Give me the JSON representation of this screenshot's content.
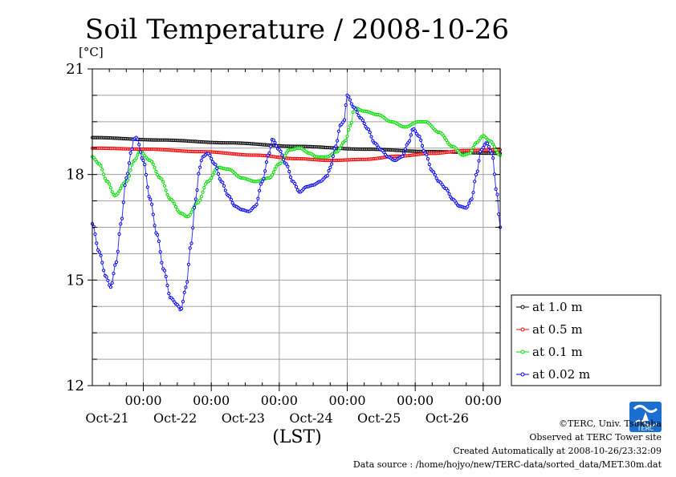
{
  "chart_data": {
    "type": "line",
    "title": "Soil Temperature / 2008-10-26",
    "ylabel": "[°C]",
    "xlabel": "(LST)",
    "ylim": [
      12,
      21
    ],
    "xlim": [
      0,
      6
    ],
    "yticks": [
      {
        "value": 12,
        "label": "12"
      },
      {
        "value": 15,
        "label": "15"
      },
      {
        "value": 18,
        "label": "18"
      },
      {
        "value": 21,
        "label": "21"
      }
    ],
    "ygrid": [
      12,
      15,
      18,
      21
    ],
    "xticks": [
      {
        "pos": 0.75,
        "time": "00:00",
        "date": "Oct-21"
      },
      {
        "pos": 1.75,
        "time": "00:00",
        "date": "Oct-22"
      },
      {
        "pos": 2.75,
        "time": "00:00",
        "date": "Oct-23"
      },
      {
        "pos": 3.75,
        "time": "00:00",
        "date": "Oct-24"
      },
      {
        "pos": 4.75,
        "time": "00:00",
        "date": "Oct-25"
      },
      {
        "pos": 5.75,
        "time": "00:00",
        "date": "Oct-26"
      }
    ],
    "grid": true,
    "legend_position": "right",
    "series": [
      {
        "name": "at 1.0 m",
        "color": "#000000",
        "points": [
          [
            0,
            19.05
          ],
          [
            1,
            18.98
          ],
          [
            2,
            18.9
          ],
          [
            3,
            18.8
          ],
          [
            4,
            18.72
          ],
          [
            5,
            18.65
          ],
          [
            6,
            18.6
          ]
        ]
      },
      {
        "name": "at 0.5 m",
        "color": "#ff0000",
        "points": [
          [
            0,
            18.75
          ],
          [
            0.8,
            18.72
          ],
          [
            1.6,
            18.65
          ],
          [
            2.4,
            18.55
          ],
          [
            3,
            18.45
          ],
          [
            3.5,
            18.4
          ],
          [
            4,
            18.43
          ],
          [
            4.5,
            18.52
          ],
          [
            5,
            18.6
          ],
          [
            5.5,
            18.68
          ],
          [
            6,
            18.7
          ]
        ]
      },
      {
        "name": "at 0.1 m",
        "color": "#00dd00",
        "points": [
          [
            0,
            18.5
          ],
          [
            0.1,
            18.3
          ],
          [
            0.22,
            17.8
          ],
          [
            0.33,
            17.4
          ],
          [
            0.5,
            17.8
          ],
          [
            0.62,
            18.4
          ],
          [
            0.7,
            18.65
          ],
          [
            0.85,
            18.4
          ],
          [
            1,
            17.9
          ],
          [
            1.15,
            17.3
          ],
          [
            1.3,
            16.9
          ],
          [
            1.4,
            16.8
          ],
          [
            1.55,
            17.2
          ],
          [
            1.7,
            17.8
          ],
          [
            1.85,
            18.2
          ],
          [
            2,
            18.15
          ],
          [
            2.2,
            17.9
          ],
          [
            2.4,
            17.8
          ],
          [
            2.6,
            17.9
          ],
          [
            2.75,
            18.3
          ],
          [
            2.9,
            18.7
          ],
          [
            3.05,
            18.75
          ],
          [
            3.2,
            18.6
          ],
          [
            3.3,
            18.5
          ],
          [
            3.45,
            18.5
          ],
          [
            3.6,
            18.65
          ],
          [
            3.72,
            18.95
          ],
          [
            3.8,
            19.4
          ],
          [
            3.85,
            19.9
          ],
          [
            4,
            19.8
          ],
          [
            4.2,
            19.7
          ],
          [
            4.4,
            19.5
          ],
          [
            4.6,
            19.35
          ],
          [
            4.8,
            19.5
          ],
          [
            4.9,
            19.5
          ],
          [
            5.1,
            19.2
          ],
          [
            5.3,
            18.8
          ],
          [
            5.45,
            18.55
          ],
          [
            5.55,
            18.6
          ],
          [
            5.65,
            18.9
          ],
          [
            5.75,
            19.1
          ],
          [
            5.85,
            18.95
          ],
          [
            6,
            18.55
          ]
        ]
      },
      {
        "name": "at 0.02 m",
        "color": "#0000ff",
        "points": [
          [
            0,
            16.6
          ],
          [
            0.1,
            15.8
          ],
          [
            0.2,
            15.1
          ],
          [
            0.27,
            14.8
          ],
          [
            0.35,
            15.5
          ],
          [
            0.42,
            16.6
          ],
          [
            0.5,
            17.9
          ],
          [
            0.58,
            18.7
          ],
          [
            0.6,
            19.0
          ],
          [
            0.65,
            19.05
          ],
          [
            0.75,
            18.4
          ],
          [
            0.85,
            17.3
          ],
          [
            0.95,
            16.3
          ],
          [
            1.05,
            15.3
          ],
          [
            1.15,
            14.5
          ],
          [
            1.25,
            14.3
          ],
          [
            1.3,
            14.15
          ],
          [
            1.38,
            14.8
          ],
          [
            1.45,
            16.0
          ],
          [
            1.52,
            17.3
          ],
          [
            1.58,
            18.2
          ],
          [
            1.62,
            18.5
          ],
          [
            1.7,
            18.6
          ],
          [
            1.8,
            18.3
          ],
          [
            1.9,
            17.8
          ],
          [
            2.0,
            17.4
          ],
          [
            2.1,
            17.1
          ],
          [
            2.2,
            17.0
          ],
          [
            2.3,
            16.95
          ],
          [
            2.4,
            17.1
          ],
          [
            2.5,
            17.8
          ],
          [
            2.6,
            18.6
          ],
          [
            2.65,
            19.0
          ],
          [
            2.75,
            18.7
          ],
          [
            2.85,
            18.3
          ],
          [
            2.95,
            17.8
          ],
          [
            3.05,
            17.5
          ],
          [
            3.15,
            17.65
          ],
          [
            3.25,
            17.7
          ],
          [
            3.35,
            17.8
          ],
          [
            3.45,
            17.95
          ],
          [
            3.5,
            18.2
          ],
          [
            3.58,
            18.8
          ],
          [
            3.65,
            19.4
          ],
          [
            3.7,
            19.5
          ],
          [
            3.75,
            20.25
          ],
          [
            3.85,
            19.9
          ],
          [
            3.95,
            19.6
          ],
          [
            4.05,
            19.3
          ],
          [
            4.15,
            18.9
          ],
          [
            4.25,
            18.7
          ],
          [
            4.35,
            18.5
          ],
          [
            4.45,
            18.4
          ],
          [
            4.55,
            18.5
          ],
          [
            4.65,
            18.9
          ],
          [
            4.72,
            19.3
          ],
          [
            4.8,
            19.1
          ],
          [
            4.9,
            18.6
          ],
          [
            5.0,
            18.1
          ],
          [
            5.1,
            17.8
          ],
          [
            5.2,
            17.6
          ],
          [
            5.3,
            17.3
          ],
          [
            5.4,
            17.1
          ],
          [
            5.5,
            17.05
          ],
          [
            5.58,
            17.3
          ],
          [
            5.65,
            18.0
          ],
          [
            5.72,
            18.7
          ],
          [
            5.8,
            18.9
          ],
          [
            5.88,
            18.6
          ],
          [
            5.95,
            17.5
          ],
          [
            6.0,
            16.5
          ]
        ]
      }
    ]
  },
  "footer": {
    "copyright": "©TERC, Univ. Tsukuba",
    "observed": "Observed at TERC Tower site",
    "created": "Created Automatically at 2008-10-26/23:32:09",
    "source": "Data source : /home/hojyo/new/TERC-data/sorted_data/MET.30m.dat"
  },
  "logo": {
    "text": "TERC"
  }
}
